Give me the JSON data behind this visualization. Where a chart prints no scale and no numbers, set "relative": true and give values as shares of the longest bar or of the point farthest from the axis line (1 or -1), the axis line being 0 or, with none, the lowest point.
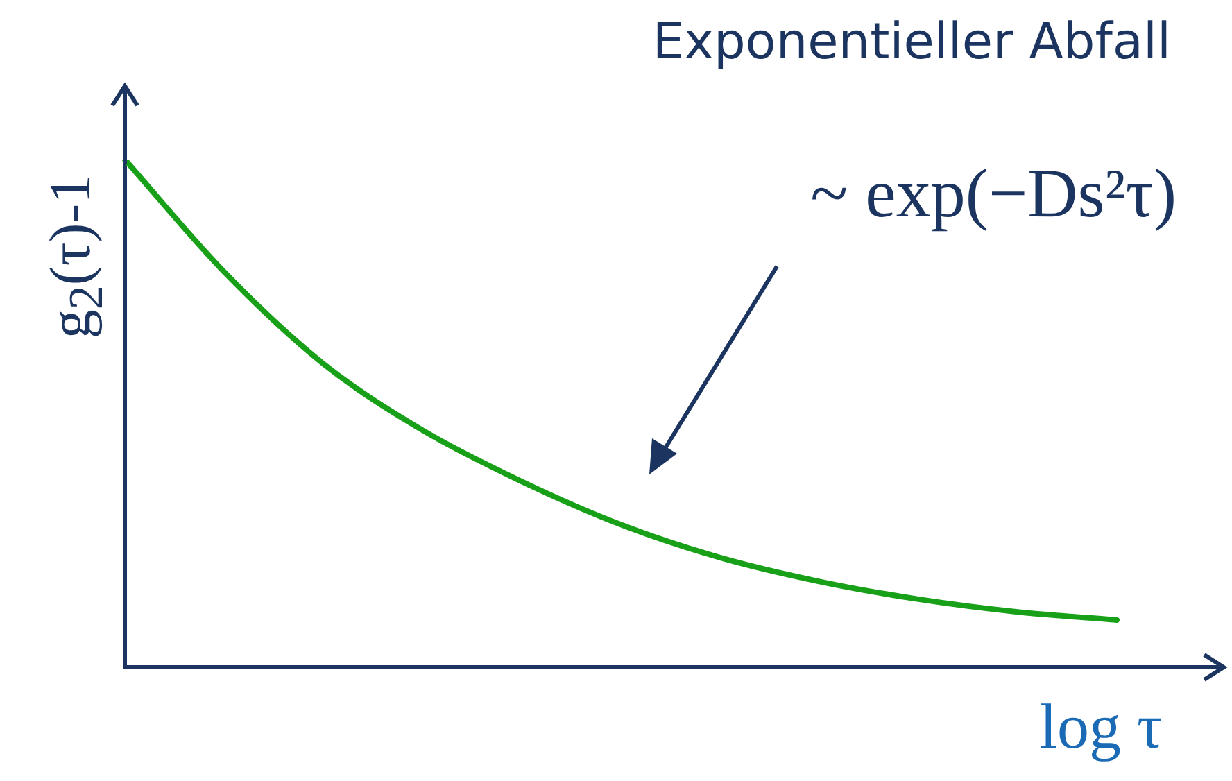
{
  "chart_data": {
    "type": "line",
    "title": "Exponentieller Abfall",
    "xlabel": "log τ",
    "ylabel": "g$_{2}$(τ)-1",
    "annotations": [
      "~ exp(−Ds²τ)"
    ],
    "relative": true,
    "categories": [
      null,
      null,
      null,
      null,
      null,
      null,
      null,
      null,
      null,
      null,
      null
    ],
    "series": [
      {
        "color": "#18a018",
        "values": [
          1.0,
          0.779,
          0.598,
          0.467,
          0.366,
          0.281,
          0.216,
          0.169,
          0.134,
          0.109,
          0.093
        ]
      }
    ],
    "marker": "none",
    "line_style": "solid"
  }
}
